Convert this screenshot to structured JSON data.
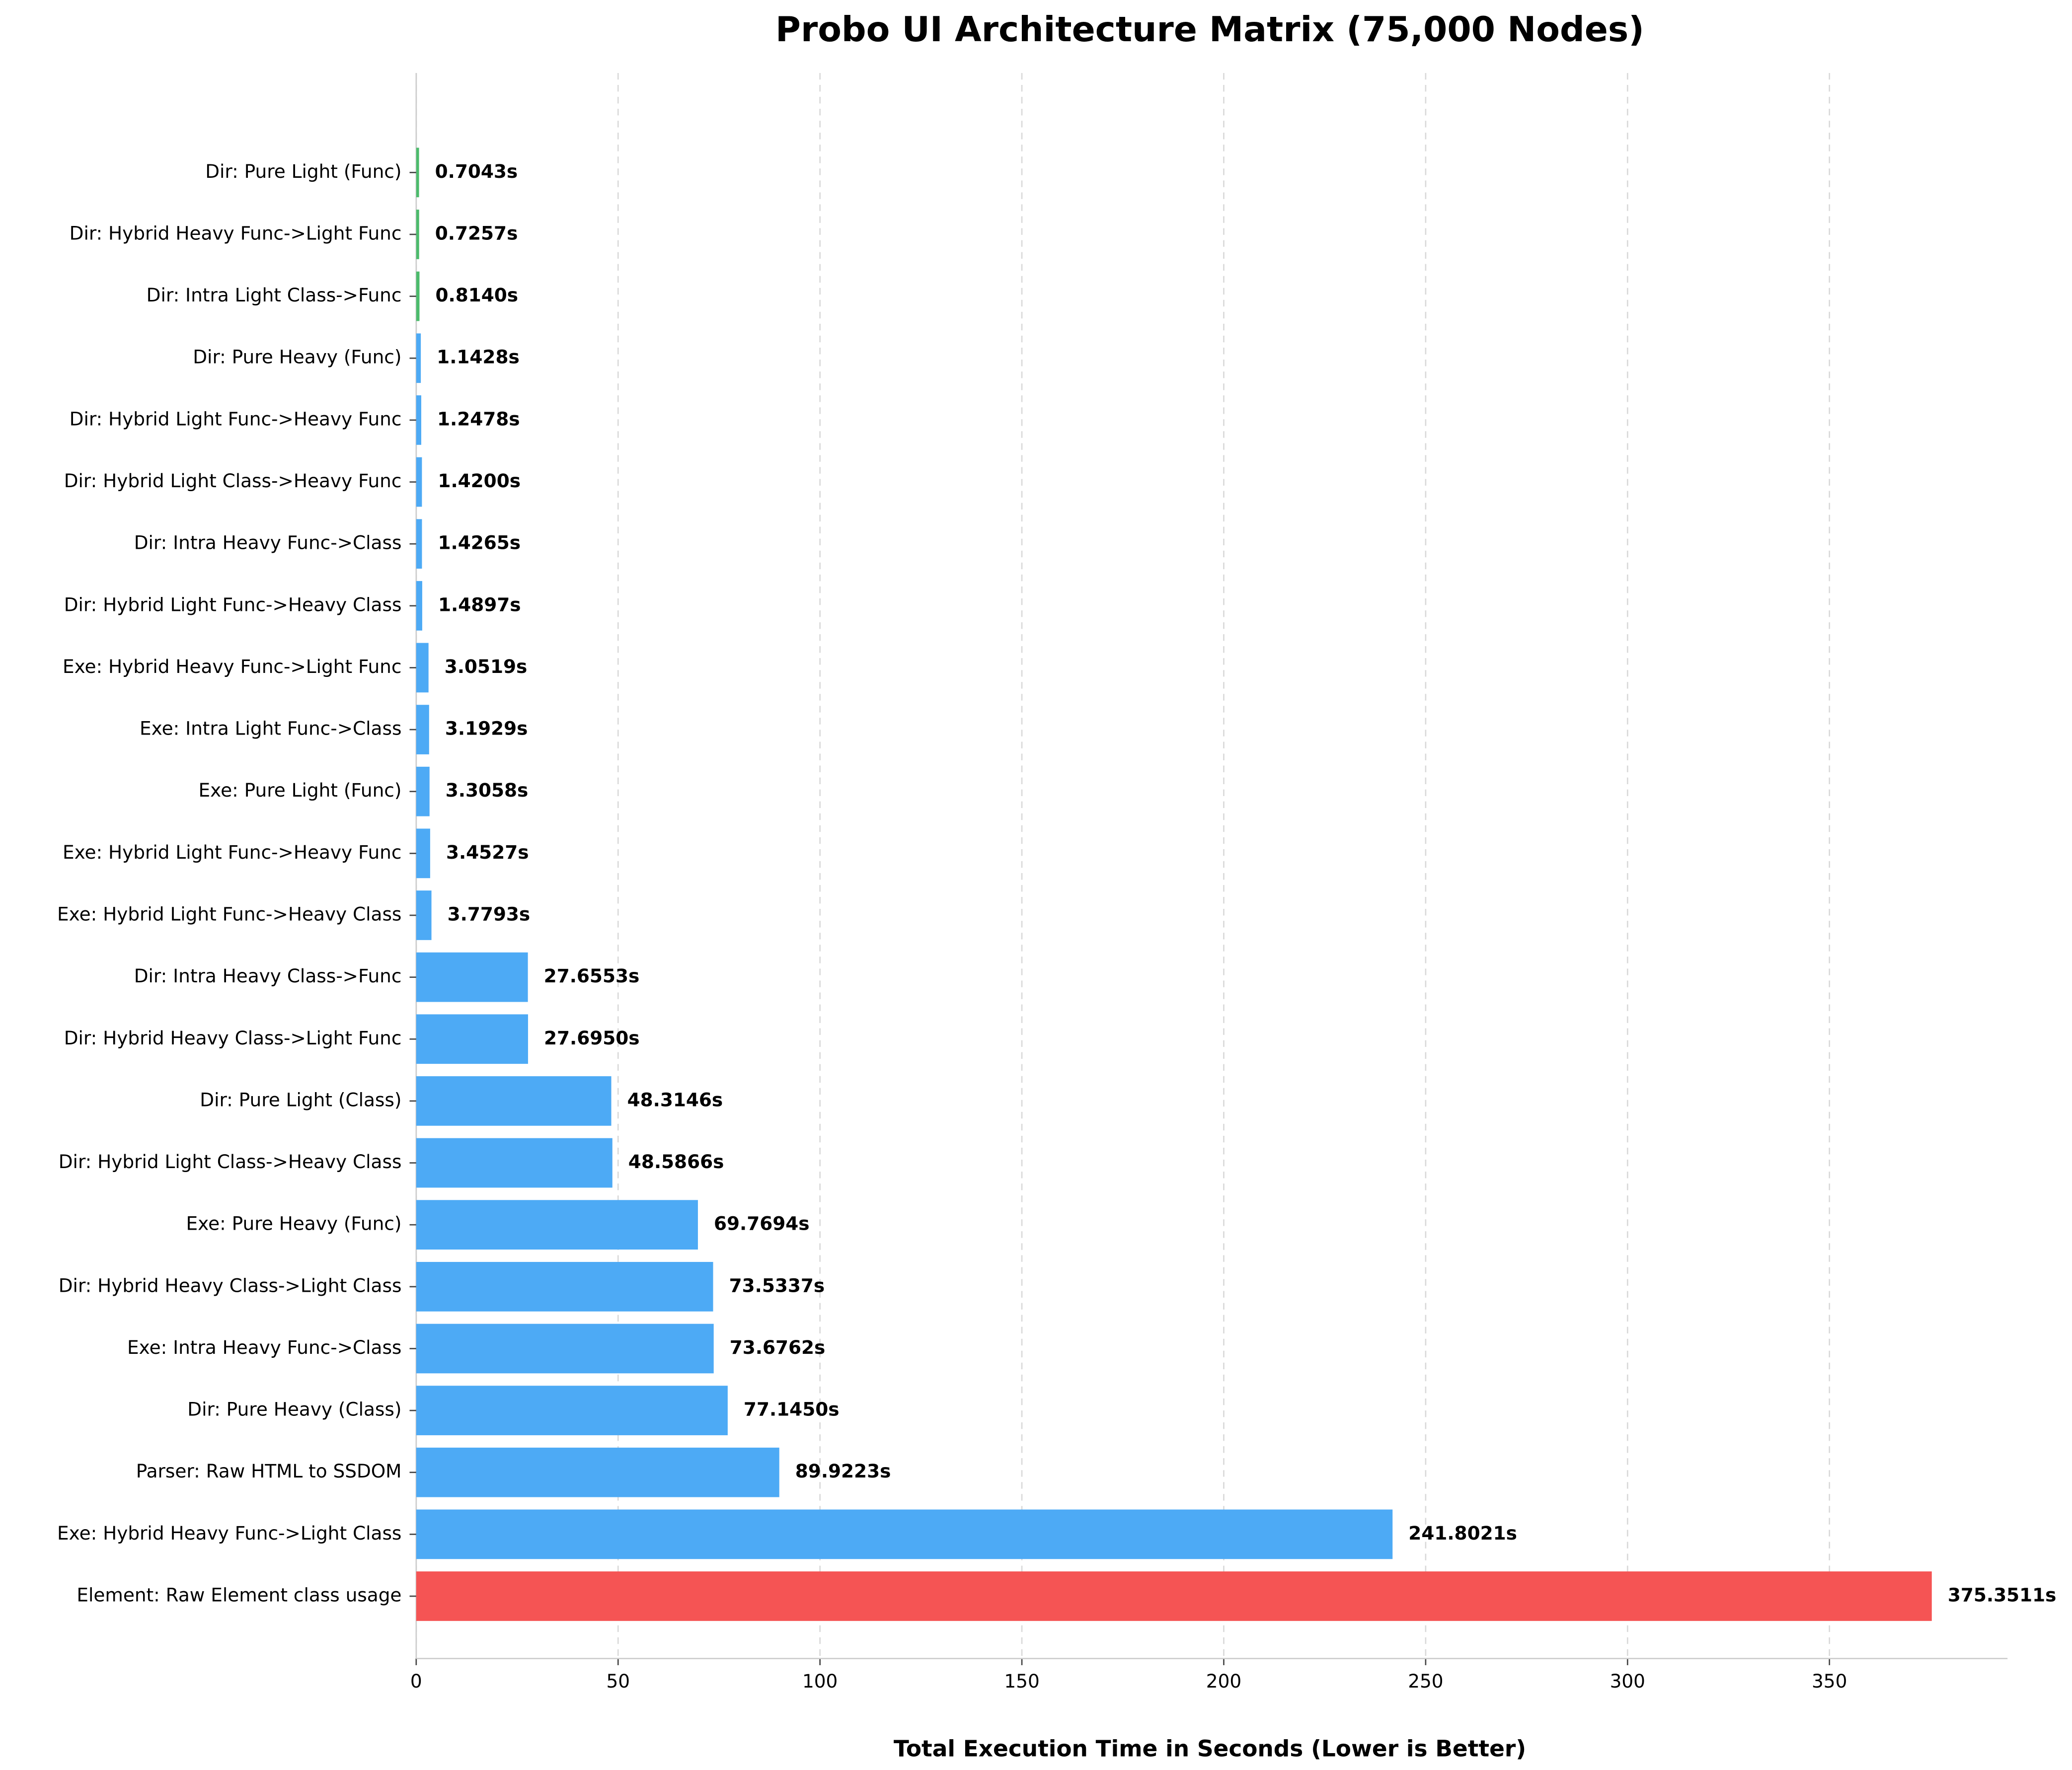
{
  "chart_data": {
    "type": "barh",
    "title": "Probo UI Architecture Matrix (75,000 Nodes)",
    "x_label": "Total Execution Time in Seconds (Lower is Better)",
    "categories": [
      "Dir: Pure Light (Func)",
      "Dir: Hybrid Heavy Func->Light Func",
      "Dir: Intra Light Class->Func",
      "Dir: Pure Heavy (Func)",
      "Dir: Hybrid Light Func->Heavy Func",
      "Dir: Hybrid Light Class->Heavy Func",
      "Dir: Intra Heavy Func->Class",
      "Dir: Hybrid Light Func->Heavy Class",
      "Exe: Hybrid Heavy Func->Light Func",
      "Exe: Intra Light Func->Class",
      "Exe: Pure Light (Func)",
      "Exe: Hybrid Light Func->Heavy Func",
      "Exe: Hybrid Light Func->Heavy Class",
      "Dir: Intra Heavy Class->Func",
      "Dir: Hybrid Heavy Class->Light Func",
      "Dir: Pure Light (Class)",
      "Dir: Hybrid Light Class->Heavy Class",
      "Exe: Pure Heavy (Func)",
      "Dir: Hybrid Heavy Class->Light Class",
      "Exe: Intra Heavy Func->Class",
      "Dir: Pure Heavy (Class)",
      "Parser: Raw HTML to SSDOM",
      "Exe: Hybrid Heavy Func->Light Class",
      "Element: Raw Element class usage"
    ],
    "values": [
      0.7043,
      0.7257,
      0.814,
      1.1428,
      1.2478,
      1.42,
      1.4265,
      1.4897,
      3.0519,
      3.1929,
      3.3058,
      3.4527,
      3.7793,
      27.6553,
      27.695,
      48.3146,
      48.5866,
      69.7694,
      73.5337,
      73.6762,
      77.145,
      89.9223,
      241.8021,
      375.3511
    ],
    "value_labels": [
      "0.7043s",
      "0.7257s",
      "0.8140s",
      "1.1428s",
      "1.2478s",
      "1.4200s",
      "1.4265s",
      "1.4897s",
      "3.0519s",
      "3.1929s",
      "3.3058s",
      "3.4527s",
      "3.7793s",
      "27.6553s",
      "27.6950s",
      "48.3146s",
      "48.5866s",
      "69.7694s",
      "73.5337s",
      "73.6762s",
      "77.1450s",
      "89.9223s",
      "241.8021s",
      "375.3511s"
    ],
    "colors": [
      "#4cbb6c",
      "#4cbb6c",
      "#4cbb6c",
      "#4daaf5",
      "#4daaf5",
      "#4daaf5",
      "#4daaf5",
      "#4daaf5",
      "#4daaf5",
      "#4daaf5",
      "#4daaf5",
      "#4daaf5",
      "#4daaf5",
      "#4daaf5",
      "#4daaf5",
      "#4daaf5",
      "#4daaf5",
      "#4daaf5",
      "#4daaf5",
      "#4daaf5",
      "#4daaf5",
      "#4daaf5",
      "#4daaf5",
      "#f55454"
    ],
    "xlim": [
      0,
      394.1
    ],
    "xticks": [
      0,
      50,
      100,
      150,
      200,
      250,
      300,
      350
    ],
    "grid": true
  }
}
